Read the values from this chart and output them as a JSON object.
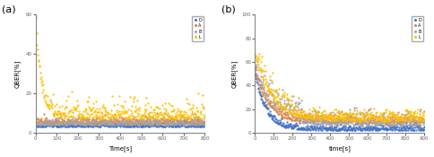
{
  "title_a": "(a)",
  "title_b": "(b)",
  "ylabel": "QBER[%]",
  "xlabel_a": "Time[s]",
  "xlabel_b": "time[s]",
  "legend_labels": [
    "D",
    "A",
    "B",
    "L"
  ],
  "colors": [
    "#4472C4",
    "#ED7D31",
    "#A5A5A5",
    "#FFC000"
  ],
  "xlim_a": [
    0,
    800
  ],
  "ylim_a": [
    0,
    60
  ],
  "yticks_a": [
    0,
    20,
    40,
    60
  ],
  "xlim_b": [
    0,
    900
  ],
  "ylim_b": [
    0,
    100
  ],
  "yticks_b": [
    0,
    20,
    40,
    60,
    80,
    100
  ],
  "marker_size": 1.2,
  "bg_color": "#ffffff"
}
